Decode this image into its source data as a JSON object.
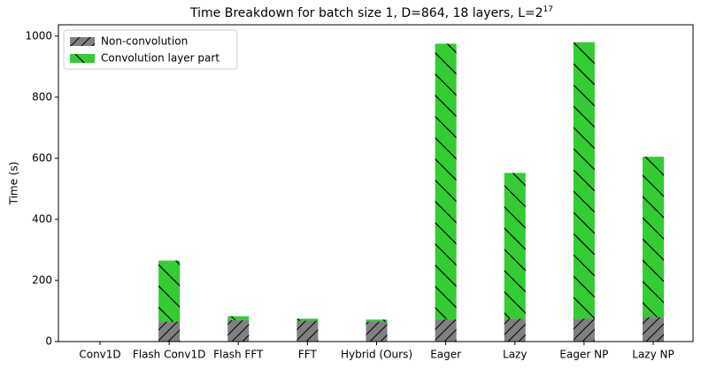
{
  "chart_data": {
    "type": "bar",
    "stacked": true,
    "title": "Time Breakdown for batch size 1, D=864, 18 layers, L=2",
    "title_superscript": "17",
    "y_label": "Time (s)",
    "categories": [
      "Conv1D",
      "Flash Conv1D",
      "Flash FFT",
      "FFT",
      "Hybrid (Ours)",
      "Eager",
      "Lazy",
      "Eager NP",
      "Lazy NP"
    ],
    "series": [
      {
        "name": "Non-convolution",
        "color": "#808080",
        "hatch": "/",
        "values": [
          0,
          65,
          70,
          68,
          65,
          73,
          75,
          75,
          80
        ]
      },
      {
        "name": "Convolution layer part",
        "color": "#33cc33",
        "hatch": "\\",
        "values": [
          0,
          200,
          13,
          7,
          7,
          902,
          477,
          905,
          525
        ]
      }
    ],
    "ylim": [
      0,
      1037
    ],
    "yticks": [
      0,
      200,
      400,
      600,
      800,
      1000
    ],
    "legend": "upper left"
  }
}
